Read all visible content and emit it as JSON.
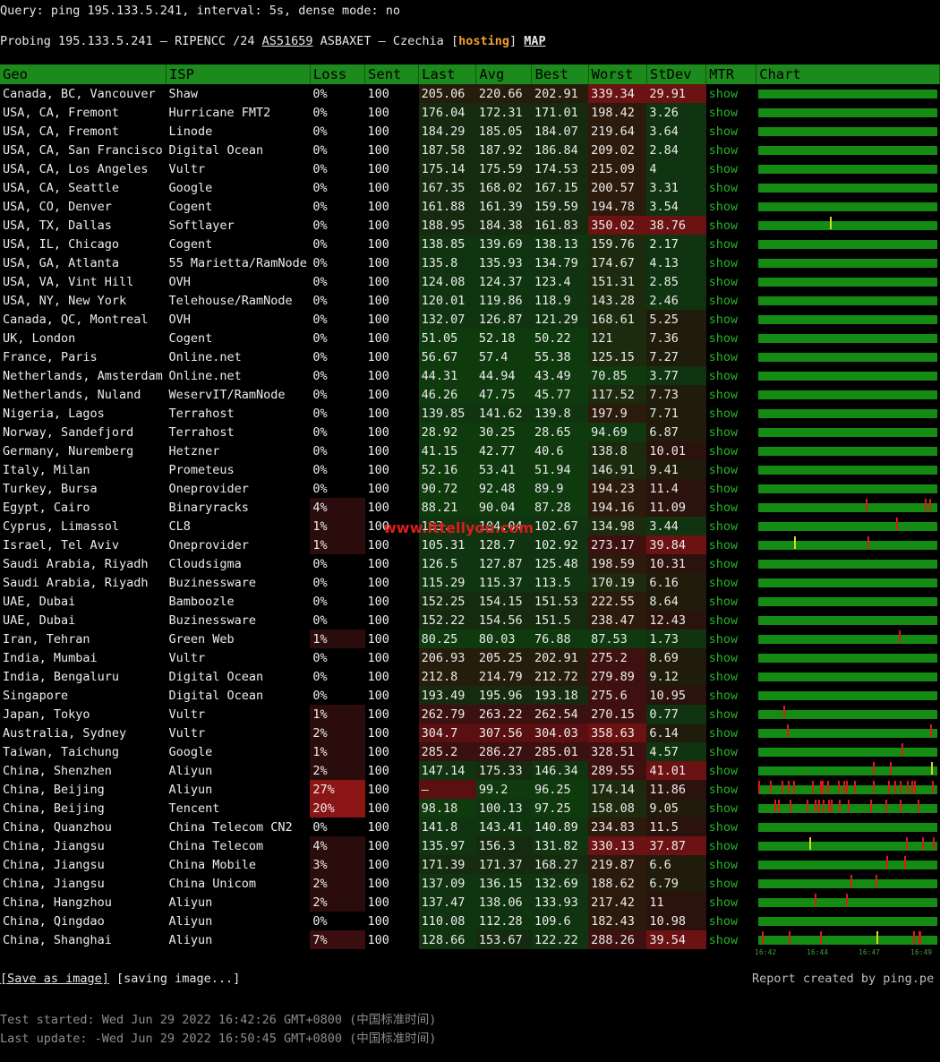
{
  "query_line": "Query: ping 195.133.5.241, interval: 5s, dense mode: no",
  "probe": {
    "prefix": "Probing 195.133.5.241 — RIPENCC /24 ",
    "asn": "AS51659",
    "middle": " ASBAXET — Czechia [",
    "hosting": "hosting",
    "close": "] ",
    "map": "MAP"
  },
  "table": {
    "headers": [
      "Geo",
      "ISP",
      "Loss",
      "Sent",
      "Last",
      "Avg",
      "Best",
      "Worst",
      "StDev",
      "MTR",
      "Chart"
    ],
    "rows": [
      {
        "geo": "Canada, BC, Vancouver",
        "isp": "Shaw",
        "loss": "0%",
        "sent": "100",
        "last": "205.06",
        "avg": "220.66",
        "best": "202.91",
        "worst": "339.34",
        "stdev": "29.91",
        "mtr": "show"
      },
      {
        "geo": "USA, CA, Fremont",
        "isp": "Hurricane FMT2",
        "loss": "0%",
        "sent": "100",
        "last": "176.04",
        "avg": "172.31",
        "best": "171.01",
        "worst": "198.42",
        "stdev": "3.26",
        "mtr": "show"
      },
      {
        "geo": "USA, CA, Fremont",
        "isp": "Linode",
        "loss": "0%",
        "sent": "100",
        "last": "184.29",
        "avg": "185.05",
        "best": "184.07",
        "worst": "219.64",
        "stdev": "3.64",
        "mtr": "show"
      },
      {
        "geo": "USA, CA, San Francisco",
        "isp": "Digital Ocean",
        "loss": "0%",
        "sent": "100",
        "last": "187.58",
        "avg": "187.92",
        "best": "186.84",
        "worst": "209.02",
        "stdev": "2.84",
        "mtr": "show"
      },
      {
        "geo": "USA, CA, Los Angeles",
        "isp": "Vultr",
        "loss": "0%",
        "sent": "100",
        "last": "175.14",
        "avg": "175.59",
        "best": "174.53",
        "worst": "215.09",
        "stdev": "4",
        "mtr": "show"
      },
      {
        "geo": "USA, CA, Seattle",
        "isp": "Google",
        "loss": "0%",
        "sent": "100",
        "last": "167.35",
        "avg": "168.02",
        "best": "167.15",
        "worst": "200.57",
        "stdev": "3.31",
        "mtr": "show"
      },
      {
        "geo": "USA, CO, Denver",
        "isp": "Cogent",
        "loss": "0%",
        "sent": "100",
        "last": "161.88",
        "avg": "161.39",
        "best": "159.59",
        "worst": "194.78",
        "stdev": "3.54",
        "mtr": "show"
      },
      {
        "geo": "USA, TX, Dallas",
        "isp": "Softlayer",
        "loss": "0%",
        "sent": "100",
        "last": "188.95",
        "avg": "184.38",
        "best": "161.83",
        "worst": "350.02",
        "stdev": "38.76",
        "mtr": "show"
      },
      {
        "geo": "USA, IL, Chicago",
        "isp": "Cogent",
        "loss": "0%",
        "sent": "100",
        "last": "138.85",
        "avg": "139.69",
        "best": "138.13",
        "worst": "159.76",
        "stdev": "2.17",
        "mtr": "show"
      },
      {
        "geo": "USA, GA, Atlanta",
        "isp": "55 Marietta/RamNode",
        "loss": "0%",
        "sent": "100",
        "last": "135.8",
        "avg": "135.93",
        "best": "134.79",
        "worst": "174.67",
        "stdev": "4.13",
        "mtr": "show"
      },
      {
        "geo": "USA, VA, Vint Hill",
        "isp": "OVH",
        "loss": "0%",
        "sent": "100",
        "last": "124.08",
        "avg": "124.37",
        "best": "123.4",
        "worst": "151.31",
        "stdev": "2.85",
        "mtr": "show"
      },
      {
        "geo": "USA, NY, New York",
        "isp": "Telehouse/RamNode",
        "loss": "0%",
        "sent": "100",
        "last": "120.01",
        "avg": "119.86",
        "best": "118.9",
        "worst": "143.28",
        "stdev": "2.46",
        "mtr": "show"
      },
      {
        "geo": "Canada, QC, Montreal",
        "isp": "OVH",
        "loss": "0%",
        "sent": "100",
        "last": "132.07",
        "avg": "126.87",
        "best": "121.29",
        "worst": "168.61",
        "stdev": "5.25",
        "mtr": "show"
      },
      {
        "geo": "UK, London",
        "isp": "Cogent",
        "loss": "0%",
        "sent": "100",
        "last": "51.05",
        "avg": "52.18",
        "best": "50.22",
        "worst": "121",
        "stdev": "7.36",
        "mtr": "show"
      },
      {
        "geo": "France, Paris",
        "isp": "Online.net",
        "loss": "0%",
        "sent": "100",
        "last": "56.67",
        "avg": "57.4",
        "best": "55.38",
        "worst": "125.15",
        "stdev": "7.27",
        "mtr": "show"
      },
      {
        "geo": "Netherlands, Amsterdam",
        "isp": "Online.net",
        "loss": "0%",
        "sent": "100",
        "last": "44.31",
        "avg": "44.94",
        "best": "43.49",
        "worst": "70.85",
        "stdev": "3.77",
        "mtr": "show"
      },
      {
        "geo": "Netherlands, Nuland",
        "isp": "WeservIT/RamNode",
        "loss": "0%",
        "sent": "100",
        "last": "46.26",
        "avg": "47.75",
        "best": "45.77",
        "worst": "117.52",
        "stdev": "7.73",
        "mtr": "show"
      },
      {
        "geo": "Nigeria, Lagos",
        "isp": "Terrahost",
        "loss": "0%",
        "sent": "100",
        "last": "139.85",
        "avg": "141.62",
        "best": "139.8",
        "worst": "197.9",
        "stdev": "7.71",
        "mtr": "show"
      },
      {
        "geo": "Norway, Sandefjord",
        "isp": "Terrahost",
        "loss": "0%",
        "sent": "100",
        "last": "28.92",
        "avg": "30.25",
        "best": "28.65",
        "worst": "94.69",
        "stdev": "6.87",
        "mtr": "show"
      },
      {
        "geo": "Germany, Nuremberg",
        "isp": "Hetzner",
        "loss": "0%",
        "sent": "100",
        "last": "41.15",
        "avg": "42.77",
        "best": "40.6",
        "worst": "138.8",
        "stdev": "10.01",
        "mtr": "show"
      },
      {
        "geo": "Italy, Milan",
        "isp": "Prometeus",
        "loss": "0%",
        "sent": "100",
        "last": "52.16",
        "avg": "53.41",
        "best": "51.94",
        "worst": "146.91",
        "stdev": "9.41",
        "mtr": "show"
      },
      {
        "geo": "Turkey, Bursa",
        "isp": "Oneprovider",
        "loss": "0%",
        "sent": "100",
        "last": "90.72",
        "avg": "92.48",
        "best": "89.9",
        "worst": "194.23",
        "stdev": "11.4",
        "mtr": "show"
      },
      {
        "geo": "Egypt, Cairo",
        "isp": "Binaryracks",
        "loss": "4%",
        "sent": "100",
        "last": "88.21",
        "avg": "90.04",
        "best": "87.28",
        "worst": "194.16",
        "stdev": "11.09",
        "mtr": "show"
      },
      {
        "geo": "Cyprus, Limassol",
        "isp": "CL8",
        "loss": "1%",
        "sent": "100",
        "last": "103.",
        "avg": "104.04",
        "best": "102.67",
        "worst": "134.98",
        "stdev": "3.44",
        "mtr": "show"
      },
      {
        "geo": "Israel, Tel Aviv",
        "isp": "Oneprovider",
        "loss": "1%",
        "sent": "100",
        "last": "105.31",
        "avg": "128.7",
        "best": "102.92",
        "worst": "273.17",
        "stdev": "39.84",
        "mtr": "show"
      },
      {
        "geo": "Saudi Arabia, Riyadh",
        "isp": "Cloudsigma",
        "loss": "0%",
        "sent": "100",
        "last": "126.5",
        "avg": "127.87",
        "best": "125.48",
        "worst": "198.59",
        "stdev": "10.31",
        "mtr": "show"
      },
      {
        "geo": "Saudi Arabia, Riyadh",
        "isp": "Buzinessware",
        "loss": "0%",
        "sent": "100",
        "last": "115.29",
        "avg": "115.37",
        "best": "113.5",
        "worst": "170.19",
        "stdev": "6.16",
        "mtr": "show"
      },
      {
        "geo": "UAE, Dubai",
        "isp": "Bamboozle",
        "loss": "0%",
        "sent": "100",
        "last": "152.25",
        "avg": "154.15",
        "best": "151.53",
        "worst": "222.55",
        "stdev": "8.64",
        "mtr": "show"
      },
      {
        "geo": "UAE, Dubai",
        "isp": "Buzinessware",
        "loss": "0%",
        "sent": "100",
        "last": "152.22",
        "avg": "154.56",
        "best": "151.5",
        "worst": "238.47",
        "stdev": "12.43",
        "mtr": "show"
      },
      {
        "geo": "Iran, Tehran",
        "isp": "Green Web",
        "loss": "1%",
        "sent": "100",
        "last": "80.25",
        "avg": "80.03",
        "best": "76.88",
        "worst": "87.53",
        "stdev": "1.73",
        "mtr": "show"
      },
      {
        "geo": "India, Mumbai",
        "isp": "Vultr",
        "loss": "0%",
        "sent": "100",
        "last": "206.93",
        "avg": "205.25",
        "best": "202.91",
        "worst": "275.2",
        "stdev": "8.69",
        "mtr": "show"
      },
      {
        "geo": "India, Bengaluru",
        "isp": "Digital Ocean",
        "loss": "0%",
        "sent": "100",
        "last": "212.8",
        "avg": "214.79",
        "best": "212.72",
        "worst": "279.89",
        "stdev": "9.12",
        "mtr": "show"
      },
      {
        "geo": "Singapore",
        "isp": "Digital Ocean",
        "loss": "0%",
        "sent": "100",
        "last": "193.49",
        "avg": "195.96",
        "best": "193.18",
        "worst": "275.6",
        "stdev": "10.95",
        "mtr": "show"
      },
      {
        "geo": "Japan, Tokyo",
        "isp": "Vultr",
        "loss": "1%",
        "sent": "100",
        "last": "262.79",
        "avg": "263.22",
        "best": "262.54",
        "worst": "270.15",
        "stdev": "0.77",
        "mtr": "show"
      },
      {
        "geo": "Australia, Sydney",
        "isp": "Vultr",
        "loss": "2%",
        "sent": "100",
        "last": "304.7",
        "avg": "307.56",
        "best": "304.03",
        "worst": "358.63",
        "stdev": "6.14",
        "mtr": "show"
      },
      {
        "geo": "Taiwan, Taichung",
        "isp": "Google",
        "loss": "1%",
        "sent": "100",
        "last": "285.2",
        "avg": "286.27",
        "best": "285.01",
        "worst": "328.51",
        "stdev": "4.57",
        "mtr": "show"
      },
      {
        "geo": "China, Shenzhen",
        "isp": "Aliyun",
        "loss": "2%",
        "sent": "100",
        "last": "147.14",
        "avg": "175.33",
        "best": "146.34",
        "worst": "289.55",
        "stdev": "41.01",
        "mtr": "show"
      },
      {
        "geo": "China, Beijing",
        "isp": "Aliyun",
        "loss": "27%",
        "sent": "100",
        "last": "—",
        "avg": "99.2",
        "best": "96.25",
        "worst": "174.14",
        "stdev": "11.86",
        "mtr": "show"
      },
      {
        "geo": "China, Beijing",
        "isp": "Tencent",
        "loss": "20%",
        "sent": "100",
        "last": "98.18",
        "avg": "100.13",
        "best": "97.25",
        "worst": "158.08",
        "stdev": "9.05",
        "mtr": "show"
      },
      {
        "geo": "China, Quanzhou",
        "isp": "China Telecom CN2",
        "loss": "0%",
        "sent": "100",
        "last": "141.8",
        "avg": "143.41",
        "best": "140.89",
        "worst": "234.83",
        "stdev": "11.5",
        "mtr": "show"
      },
      {
        "geo": "China, Jiangsu",
        "isp": "China Telecom",
        "loss": "4%",
        "sent": "100",
        "last": "135.97",
        "avg": "156.3",
        "best": "131.82",
        "worst": "330.13",
        "stdev": "37.87",
        "mtr": "show"
      },
      {
        "geo": "China, Jiangsu",
        "isp": "China Mobile",
        "loss": "3%",
        "sent": "100",
        "last": "171.39",
        "avg": "171.37",
        "best": "168.27",
        "worst": "219.87",
        "stdev": "6.6",
        "mtr": "show"
      },
      {
        "geo": "China, Jiangsu",
        "isp": "China Unicom",
        "loss": "2%",
        "sent": "100",
        "last": "137.09",
        "avg": "136.15",
        "best": "132.69",
        "worst": "188.62",
        "stdev": "6.79",
        "mtr": "show"
      },
      {
        "geo": "China, Hangzhou",
        "isp": "Aliyun",
        "loss": "2%",
        "sent": "100",
        "last": "137.47",
        "avg": "138.06",
        "best": "133.93",
        "worst": "217.42",
        "stdev": "11",
        "mtr": "show"
      },
      {
        "geo": "China, Qingdao",
        "isp": "Aliyun",
        "loss": "0%",
        "sent": "100",
        "last": "110.08",
        "avg": "112.28",
        "best": "109.6",
        "worst": "182.43",
        "stdev": "10.98",
        "mtr": "show"
      },
      {
        "geo": "China, Shanghai",
        "isp": "Aliyun",
        "loss": "7%",
        "sent": "100",
        "last": "128.66",
        "avg": "153.67",
        "best": "122.22",
        "worst": "288.26",
        "stdev": "39.54",
        "mtr": "show"
      }
    ]
  },
  "chart_ticks": [
    "16:42",
    "16:44",
    "16:47",
    "16:49"
  ],
  "watermark": "www.ittellyou.com",
  "footer": {
    "save_label": "[Save as image]",
    "saving_label": " [saving image...]",
    "report": "Report created by ping.pe",
    "started": "Test started: Wed Jun 29 2022 16:42:26 GMT+0800 (中国标准时间)",
    "updated": "Last update: -Wed Jun 29 2022 16:50:45 GMT+0800 (中国标准时间)"
  },
  "colors": {
    "header_green": "#1c8a1c",
    "link_green": "#27b427",
    "hosting_orange": "#f0a030",
    "alert_red": "#8b1414"
  }
}
